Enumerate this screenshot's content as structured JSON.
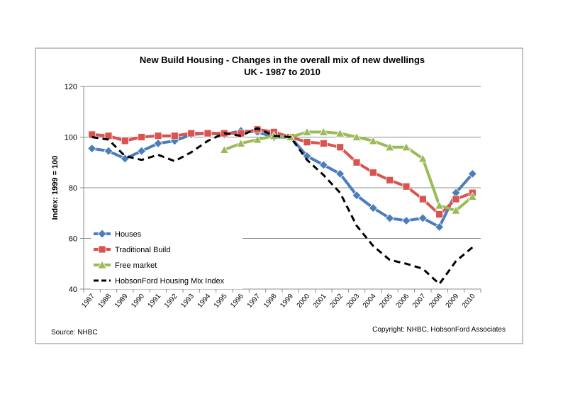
{
  "chart_data": {
    "type": "line",
    "title": "New Build Housing - Changes in the overall mix of new dwellings",
    "subtitle": "UK - 1987 to 2010",
    "y_label": "Index: 1999 = 100",
    "source": "Source: NHBC",
    "copyright": "Copyright: NHBC, HobsonFord Associates",
    "categories": [
      "1987",
      "1988",
      "1989",
      "1990",
      "1991",
      "1992",
      "1993",
      "1994",
      "1995",
      "1996",
      "1997",
      "1998",
      "1999",
      "2000",
      "2001",
      "2002",
      "2003",
      "2004",
      "2005",
      "2006",
      "2007",
      "2008",
      "2009",
      "2010"
    ],
    "ylim": [
      40,
      120
    ],
    "yticks": [
      40,
      60,
      80,
      100,
      120
    ],
    "grid": true,
    "legend": "lower left",
    "series": [
      {
        "name": "Houses",
        "color": "#4a7ebb",
        "marker": "diamond",
        "values": [
          95.5,
          94.5,
          91.5,
          94.5,
          97.5,
          98.5,
          101,
          101.5,
          101,
          102.5,
          102,
          100,
          100,
          92.5,
          89,
          85.5,
          77,
          72,
          68,
          67,
          68,
          64.5,
          78,
          85.5
        ]
      },
      {
        "name": "Traditional Build",
        "color": "#d9534f",
        "marker": "square",
        "values": [
          101,
          100.5,
          98.5,
          100,
          100.5,
          100.5,
          101.5,
          101.5,
          101.5,
          101.5,
          103,
          102,
          100,
          98,
          97.5,
          96,
          90,
          86,
          83,
          80.5,
          75.5,
          69.5,
          75.5,
          78
        ]
      },
      {
        "name": "Free market",
        "color": "#9bbb59",
        "marker": "triangle",
        "values": [
          null,
          null,
          null,
          null,
          null,
          null,
          null,
          null,
          95,
          97.5,
          99,
          100.5,
          100,
          102,
          102,
          101.5,
          100,
          98.5,
          96,
          96,
          91.5,
          73,
          71,
          76.5
        ]
      },
      {
        "name": "HobsonFord Housing Mix Index",
        "color": "#000000",
        "marker": "none",
        "dash": true,
        "values": [
          100,
          99,
          92.5,
          91,
          93,
          90.5,
          94,
          98.5,
          101.5,
          100.5,
          103.5,
          100.5,
          100,
          91,
          85,
          78,
          65,
          57,
          51.5,
          50,
          48,
          42,
          51,
          56.5
        ]
      }
    ]
  }
}
